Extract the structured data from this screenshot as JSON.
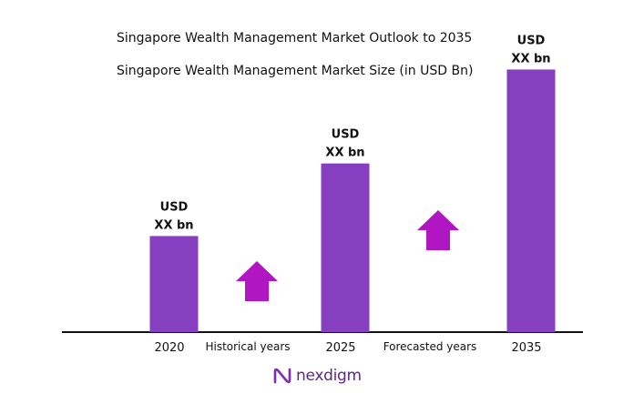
{
  "title": "Singapore Wealth Management Market Outlook to 2035",
  "subtitle": "Singapore Wealth Management Market Size (in USD Bn)",
  "colors": {
    "bar": "#8640bf",
    "arrow": "#b016c2",
    "axis": "#111111"
  },
  "chart_data": {
    "type": "bar",
    "categories": [
      "2020",
      "2025",
      "2035"
    ],
    "values": [
      90,
      158,
      246
    ],
    "ylim": [
      0,
      260
    ],
    "value_labels": [
      {
        "line1": "USD",
        "line2": "XX bn"
      },
      {
        "line1": "USD",
        "line2": "XX bn"
      },
      {
        "line1": "USD",
        "line2": "XX bn"
      }
    ],
    "segments": [
      "Historical years",
      "Forecasted years"
    ],
    "grid": false,
    "legend": "none"
  },
  "logo": {
    "text": "nexdigm",
    "icon": "nexdigm-logo-icon"
  }
}
